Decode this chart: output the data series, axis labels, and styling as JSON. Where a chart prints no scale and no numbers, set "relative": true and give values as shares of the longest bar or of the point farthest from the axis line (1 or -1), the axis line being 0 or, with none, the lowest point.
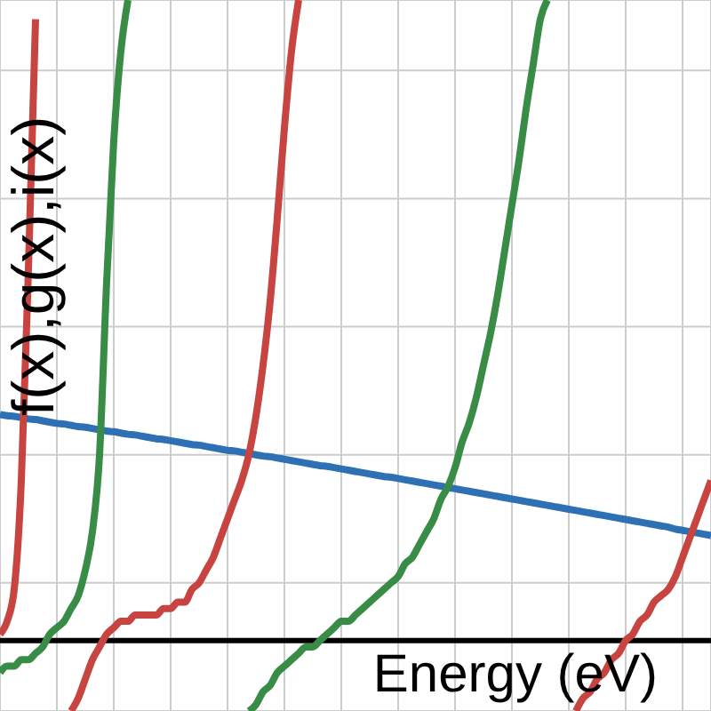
{
  "chart_data": {
    "type": "line",
    "relative": true,
    "xlabel": "Energy (eV)",
    "ylabel": "f(x),g(x),i(x)",
    "grid": true,
    "categories": [
      null,
      null,
      null,
      null,
      null,
      null,
      null,
      null,
      null,
      null,
      null,
      null,
      null,
      null,
      null,
      null,
      null,
      null,
      null,
      null,
      null,
      null,
      null,
      null,
      null,
      null,
      null,
      null,
      null,
      null,
      null,
      null,
      null,
      null,
      null,
      null,
      null,
      null,
      null,
      null,
      null,
      null,
      null,
      null,
      null,
      null,
      null,
      null,
      null,
      null,
      null,
      null,
      null,
      null,
      null,
      null,
      null,
      null,
      null,
      null,
      null,
      null,
      null,
      null,
      null,
      null,
      null,
      null,
      null,
      null,
      null,
      null,
      null,
      null,
      null,
      null,
      null,
      null,
      null,
      null,
      null,
      null,
      null,
      null,
      null,
      null,
      null,
      null,
      null,
      null,
      null,
      null,
      null,
      null,
      null,
      null,
      null,
      null,
      null,
      null,
      null
    ],
    "series": [
      {
        "color": "#2d70b3",
        "values": [
          0.353,
          0.351,
          0.35,
          0.348,
          0.346,
          0.345,
          0.343,
          0.341,
          0.339,
          0.338,
          0.336,
          0.334,
          0.333,
          0.331,
          0.329,
          0.327,
          0.326,
          0.324,
          0.322,
          0.321,
          0.319,
          0.317,
          0.315,
          0.314,
          0.312,
          0.31,
          0.308,
          0.306,
          0.305,
          0.303,
          0.301,
          0.299,
          0.297,
          0.296,
          0.294,
          0.292,
          0.29,
          0.288,
          0.287,
          0.285,
          0.283,
          0.281,
          0.279,
          0.277,
          0.275,
          0.273,
          0.272,
          0.27,
          0.268,
          0.266,
          0.264,
          0.262,
          0.26,
          0.258,
          0.256,
          0.255,
          0.253,
          0.251,
          0.249,
          0.247,
          0.245,
          0.243,
          0.241,
          0.239,
          0.237,
          0.235,
          0.233,
          0.231,
          0.229,
          0.227,
          0.225,
          0.223,
          0.221,
          0.219,
          0.217,
          0.215,
          0.213,
          0.211,
          0.209,
          0.207,
          0.205,
          0.203,
          0.201,
          0.199,
          0.197,
          0.195,
          0.193,
          0.191,
          0.189,
          0.187,
          0.185,
          0.183,
          0.181,
          0.179,
          0.177,
          0.174,
          0.172,
          0.17,
          0.168,
          0.166,
          0.164
        ]
      },
      {
        "color": "#c74440",
        "values": [
          0.01,
          0.03,
          0.08,
          0.25,
          0.58,
          0.97,
          null,
          null,
          null,
          null,
          null,
          null,
          null,
          null,
          null,
          null,
          null,
          null,
          null,
          null,
          null,
          null,
          null,
          null,
          null,
          null,
          null,
          null,
          null,
          null,
          null,
          null,
          null,
          null,
          null,
          null,
          null,
          null,
          null,
          null,
          null,
          null,
          null,
          null,
          null,
          null,
          null,
          null,
          null,
          null,
          null,
          null,
          null,
          null,
          null,
          null,
          null,
          null,
          null,
          null,
          null,
          null,
          null,
          null,
          null,
          null,
          null,
          null,
          null,
          null,
          null,
          null,
          null,
          null,
          null,
          null,
          null,
          null,
          null,
          null,
          null,
          null,
          null,
          null,
          null,
          null,
          null,
          null,
          null,
          null,
          null,
          null,
          null,
          null,
          null,
          null,
          null,
          null,
          null,
          null,
          null
        ]
      },
      {
        "color": "#388c46",
        "values": [
          -0.05,
          -0.04,
          -0.04,
          -0.03,
          -0.03,
          -0.02,
          -0.01,
          0.01,
          0.02,
          0.03,
          0.05,
          0.07,
          0.11,
          0.17,
          0.29,
          0.56,
          0.78,
          0.92,
          1.0,
          null,
          null,
          null,
          null,
          null,
          null,
          null,
          null,
          null,
          null,
          null,
          null,
          null,
          null,
          null,
          null,
          null,
          null,
          null,
          null,
          null,
          null,
          null,
          null,
          null,
          null,
          null,
          null,
          null,
          null,
          null,
          null,
          null,
          null,
          null,
          null,
          null,
          null,
          null,
          null,
          null,
          null,
          null,
          null,
          null,
          null,
          null,
          null,
          null,
          null,
          null,
          null,
          null,
          null,
          null,
          null,
          null,
          null,
          null,
          null,
          null,
          null,
          null,
          null,
          null,
          null,
          null,
          null,
          null,
          null,
          null,
          null,
          null,
          null,
          null,
          null,
          null,
          null,
          null,
          null,
          null,
          null
        ]
      },
      {
        "color": "#c74440",
        "values": [
          null,
          null,
          null,
          null,
          null,
          null,
          null,
          null,
          null,
          null,
          -0.11,
          -0.09,
          -0.06,
          -0.03,
          -0.01,
          0.01,
          0.02,
          0.03,
          0.03,
          0.04,
          0.04,
          0.04,
          0.04,
          0.05,
          0.05,
          0.06,
          0.06,
          0.08,
          0.09,
          0.11,
          0.13,
          0.16,
          0.19,
          0.22,
          0.25,
          0.29,
          0.35,
          0.43,
          0.53,
          0.66,
          0.8,
          0.92,
          1.0,
          null,
          null,
          null,
          null,
          null,
          null,
          null,
          null,
          null,
          null,
          null,
          null,
          null,
          null,
          null,
          null,
          null,
          null,
          null,
          null,
          null,
          null,
          null,
          null,
          null,
          null,
          null,
          null,
          null,
          null,
          null,
          null,
          null,
          null,
          null,
          null,
          null,
          null,
          null,
          null,
          null,
          null,
          null,
          null,
          null,
          null,
          null,
          null,
          null,
          null,
          null,
          null,
          null,
          null,
          null,
          null,
          null,
          null
        ]
      },
      {
        "color": "#388c46",
        "values": [
          null,
          null,
          null,
          null,
          null,
          null,
          null,
          null,
          null,
          null,
          null,
          null,
          null,
          null,
          null,
          null,
          null,
          null,
          null,
          null,
          null,
          null,
          null,
          null,
          null,
          null,
          null,
          null,
          null,
          null,
          null,
          null,
          null,
          null,
          null,
          -0.11,
          -0.1,
          -0.08,
          -0.07,
          -0.05,
          -0.04,
          -0.03,
          -0.02,
          -0.01,
          -0.01,
          0.0,
          0.01,
          0.02,
          0.03,
          0.03,
          0.04,
          0.05,
          0.06,
          0.07,
          0.08,
          0.09,
          0.1,
          0.12,
          0.13,
          0.15,
          0.17,
          0.19,
          0.22,
          0.24,
          0.27,
          0.31,
          0.34,
          0.38,
          0.43,
          0.48,
          0.54,
          0.61,
          0.68,
          0.75,
          0.83,
          0.9,
          0.97,
          1.0,
          null,
          null,
          null,
          null,
          null,
          null,
          null,
          null,
          null,
          null,
          null,
          null,
          null,
          null,
          null,
          null,
          null,
          null,
          null,
          null,
          null,
          null,
          null
        ]
      },
      {
        "color": "#c74440",
        "values": [
          null,
          null,
          null,
          null,
          null,
          null,
          null,
          null,
          null,
          null,
          null,
          null,
          null,
          null,
          null,
          null,
          null,
          null,
          null,
          null,
          null,
          null,
          null,
          null,
          null,
          null,
          null,
          null,
          null,
          null,
          null,
          null,
          null,
          null,
          null,
          null,
          null,
          null,
          null,
          null,
          null,
          null,
          null,
          null,
          null,
          null,
          null,
          null,
          null,
          null,
          null,
          null,
          null,
          null,
          null,
          null,
          null,
          null,
          null,
          null,
          null,
          null,
          null,
          null,
          null,
          null,
          null,
          null,
          null,
          null,
          null,
          null,
          null,
          null,
          null,
          null,
          null,
          null,
          null,
          null,
          null,
          -0.11,
          -0.09,
          -0.08,
          -0.06,
          -0.05,
          -0.03,
          -0.02,
          0.0,
          0.01,
          0.03,
          0.04,
          0.06,
          0.07,
          0.08,
          0.1,
          0.13,
          0.16,
          0.19,
          0.22,
          0.25
        ]
      }
    ]
  }
}
